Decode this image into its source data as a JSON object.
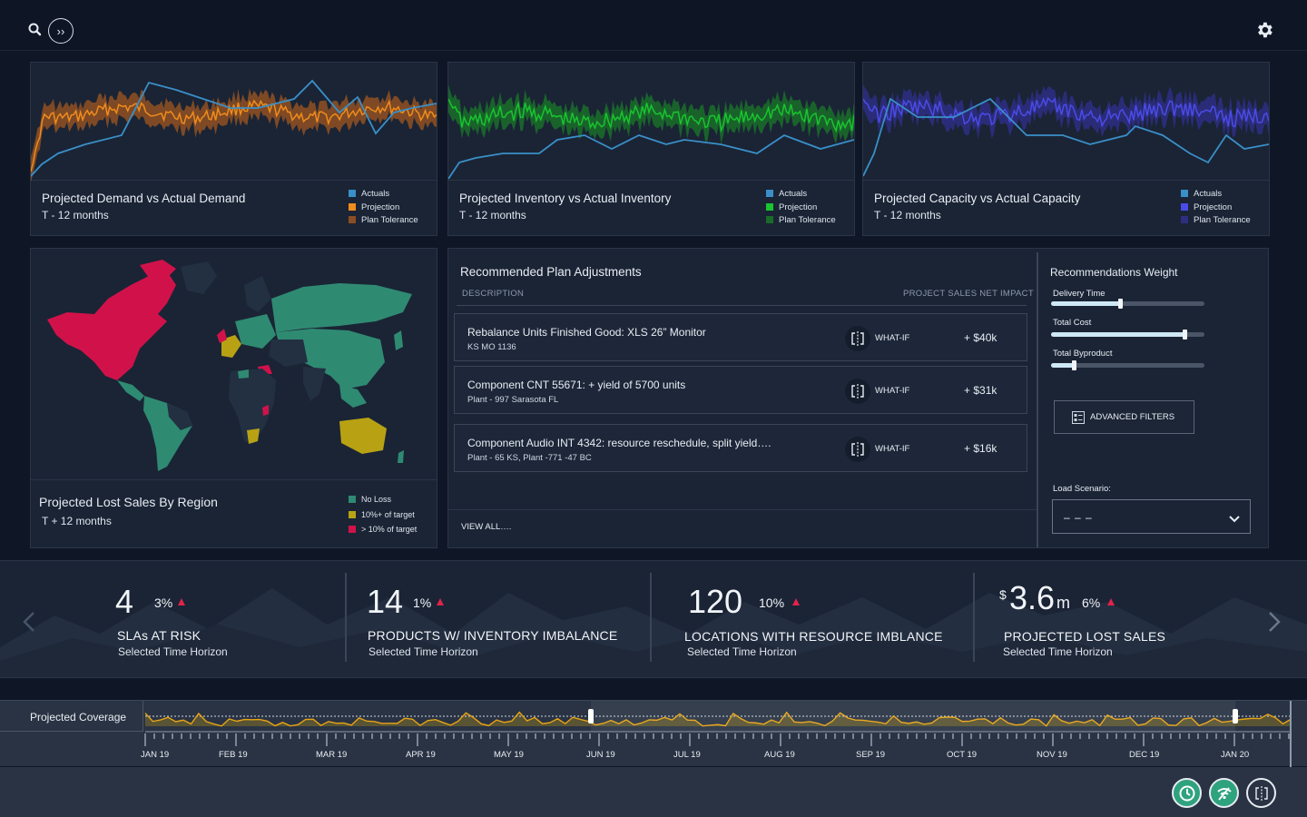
{
  "toolbar": {
    "search_icon": "search-icon",
    "expand_label": "››",
    "settings_icon": "gear-icon"
  },
  "charts": [
    {
      "title": "Projected Demand vs Actual Demand",
      "subtitle": "T - 12 months",
      "legend": [
        "Actuals",
        "Projection",
        "Plan Tolerance"
      ],
      "colors": {
        "actuals": "#3a8fc8",
        "projection": "#f08c1c",
        "tolerance": "#8a4e22"
      }
    },
    {
      "title": "Projected Inventory vs Actual Inventory",
      "subtitle": "T - 12 months",
      "legend": [
        "Actuals",
        "Projection",
        "Plan Tolerance"
      ],
      "colors": {
        "actuals": "#3a8fc8",
        "projection": "#19c42e",
        "tolerance": "#1a6a2a"
      }
    },
    {
      "title": "Projected Capacity vs Actual Capacity",
      "subtitle": "T - 12 months",
      "legend": [
        "Actuals",
        "Projection",
        "Plan Tolerance"
      ],
      "colors": {
        "actuals": "#3a8fc8",
        "projection": "#4a4be8",
        "tolerance": "#2e2e80"
      }
    }
  ],
  "map": {
    "title": "Projected Lost Sales By Region",
    "subtitle": "T + 12 months",
    "legend": [
      "No Loss",
      "10%+ of target",
      "> 10% of target"
    ],
    "colors": {
      "no_loss": "#2f8a72",
      "mid": "#b8a214",
      "high": "#d1124a",
      "neutral": "#223042"
    }
  },
  "recommendations": {
    "title": "Recommended Plan Adjustments",
    "col_description": "DESCRIPTION",
    "col_impact": "PROJECT SALES NET IMPACT",
    "rows": [
      {
        "desc": "Rebalance Units Finished Good: XLS 26” Monitor",
        "sub": "KS MO 1136",
        "action": "WHAT-IF",
        "impact": "+ $40k"
      },
      {
        "desc": "Component CNT 55671: + yield of 5700 units",
        "sub": "Plant - 997 Sarasota FL",
        "action": "WHAT-IF",
        "impact": "+ $31k"
      },
      {
        "desc": "Component Audio INT 4342: resource reschedule, split yield….",
        "sub": "Plant - 65 KS, Plant -771 -47 BC",
        "action": "WHAT-IF",
        "impact": "+ $16k"
      }
    ],
    "view_all": "VIEW ALL….",
    "weight": {
      "title": "Recommendations Weight",
      "sliders": [
        {
          "label": "Delivery Time",
          "value": 0.45
        },
        {
          "label": "Total Cost",
          "value": 0.87
        },
        {
          "label": "Total Byproduct",
          "value": 0.15
        }
      ]
    },
    "advanced_filters": "ADVANCED FILTERS",
    "load_scenario_label": "Load Scenario:",
    "load_scenario_value": "– – –"
  },
  "kpis": [
    {
      "value": "4",
      "pct": "3%",
      "label": "SLAs AT RISK",
      "sub": "Selected Time Horizon"
    },
    {
      "value": "14",
      "pct": "1%",
      "label": "PRODUCTS  W/  INVENTORY IMBALANCE",
      "sub": "Selected Time Horizon"
    },
    {
      "value": "120",
      "pct": "10%",
      "label": "LOCATIONS WITH RESOURCE IMBLANCE",
      "sub": "Selected Time Horizon"
    },
    {
      "currency": "$",
      "value": "3.6",
      "unit": "m",
      "pct": "6%",
      "label": "PROJECTED LOST SALES",
      "sub": "Selected Time Horizon"
    }
  ],
  "timeline": {
    "label": "Projected Coverage",
    "months": [
      "JAN 19",
      "FEB 19",
      "MAR 19",
      "APR 19",
      "MAY 19",
      "JUN 19",
      "JUL 19",
      "AUG 19",
      "SEP 19",
      "OCT 19",
      "NOV 19",
      "DEC 19",
      "JAN 20"
    ],
    "line_color": "#e8a416"
  },
  "footer": {
    "buttons": [
      "clock-icon",
      "wifi-icon",
      "compare-icon"
    ]
  }
}
